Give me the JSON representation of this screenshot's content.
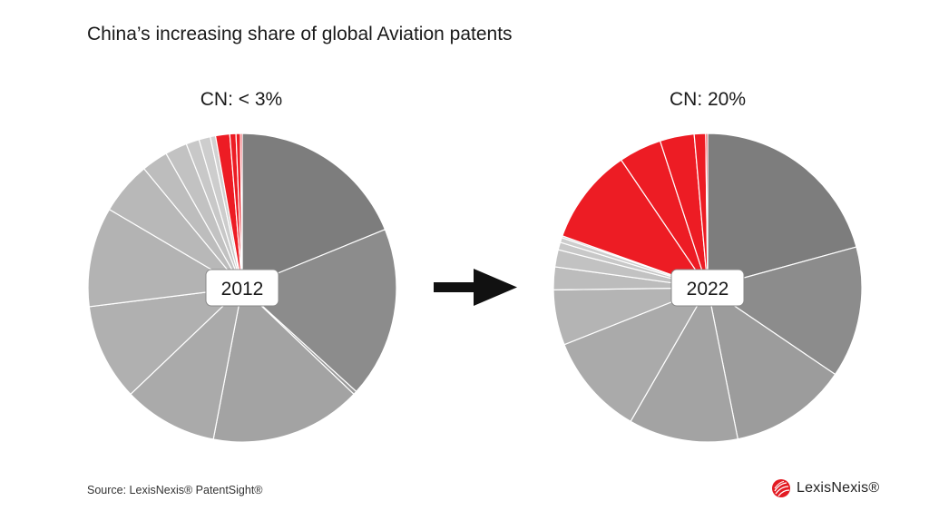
{
  "title": "China’s increasing share of global Aviation patents",
  "source": "Source: LexisNexis® PatentSight®",
  "logo": {
    "text": "LexisNexis®",
    "icon": "lexisnexis-logo-icon",
    "color": "#e31b23"
  },
  "arrow": {
    "icon": "right-arrow-icon"
  },
  "colors": {
    "china": "#ed1c24",
    "separator": "#ffffff",
    "badge_bg": "#ffffff",
    "badge_border": "#888888"
  },
  "chart_data": [
    {
      "type": "pie",
      "label": "2012",
      "header": "CN: < 3%",
      "start_angle_deg": 0,
      "direction": "clockwise",
      "slices": [
        {
          "value": 20.4,
          "color": "#7d7d7d",
          "china": false
        },
        {
          "value": 19.4,
          "color": "#8c8c8c",
          "china": false
        },
        {
          "value": 0.4,
          "color": "#9a9a9a",
          "china": false
        },
        {
          "value": 17.2,
          "color": "#a3a3a3",
          "china": false
        },
        {
          "value": 10.7,
          "color": "#aaaaaa",
          "china": false
        },
        {
          "value": 11.0,
          "color": "#b0b0b0",
          "china": false
        },
        {
          "value": 11.3,
          "color": "#b3b3b3",
          "china": false
        },
        {
          "value": 6.0,
          "color": "#b8b8b8",
          "china": false
        },
        {
          "value": 3.0,
          "color": "#bdbdbd",
          "china": false
        },
        {
          "value": 2.5,
          "color": "#c2c2c2",
          "china": false
        },
        {
          "value": 1.5,
          "color": "#c8c8c8",
          "china": false
        },
        {
          "value": 1.3,
          "color": "#cdcdcd",
          "china": false
        },
        {
          "value": 0.6,
          "color": "#d2d2d2",
          "china": false
        },
        {
          "value": 1.6,
          "color": "#ed1c24",
          "china": true
        },
        {
          "value": 0.7,
          "color": "#ed1c24",
          "china": true
        },
        {
          "value": 0.5,
          "color": "#ed1c24",
          "china": true
        },
        {
          "value": 0.2,
          "color": "#ed1c24",
          "china": true
        }
      ]
    },
    {
      "type": "pie",
      "label": "2022",
      "header": "CN: 20%",
      "start_angle_deg": 0,
      "direction": "clockwise",
      "slices": [
        {
          "value": 20.8,
          "color": "#7d7d7d",
          "china": false
        },
        {
          "value": 13.8,
          "color": "#8c8c8c",
          "china": false
        },
        {
          "value": 12.4,
          "color": "#9c9c9c",
          "china": false
        },
        {
          "value": 11.5,
          "color": "#a3a3a3",
          "china": false
        },
        {
          "value": 10.7,
          "color": "#aaaaaa",
          "china": false
        },
        {
          "value": 5.8,
          "color": "#b4b4b4",
          "china": false
        },
        {
          "value": 2.4,
          "color": "#bcbcbc",
          "china": false
        },
        {
          "value": 1.8,
          "color": "#c2c2c2",
          "china": false
        },
        {
          "value": 0.8,
          "color": "#c8c8c8",
          "china": false
        },
        {
          "value": 0.5,
          "color": "#cdcdcd",
          "china": false
        },
        {
          "value": 0.2,
          "color": "#d2d2d2",
          "china": false
        },
        {
          "value": 10.1,
          "color": "#ed1c24",
          "china": true
        },
        {
          "value": 4.5,
          "color": "#ed1c24",
          "china": true
        },
        {
          "value": 3.6,
          "color": "#ed1c24",
          "china": true
        },
        {
          "value": 1.2,
          "color": "#ed1c24",
          "china": true
        },
        {
          "value": 0.2,
          "color": "#ed1c24",
          "china": true
        }
      ]
    }
  ]
}
